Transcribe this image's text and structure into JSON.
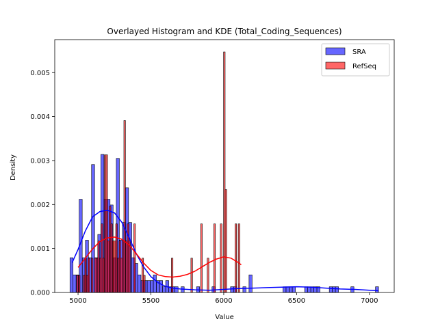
{
  "chart_data": {
    "type": "bar",
    "title": "Overlayed Histogram and KDE (Total_Coding_Sequences)",
    "xlabel": "Value",
    "ylabel": "Density",
    "xlim": [
      4840,
      7170
    ],
    "ylim": [
      0,
      0.00575
    ],
    "xticks": [
      5000,
      5500,
      6000,
      6500,
      7000
    ],
    "xtick_labels": [
      "5000",
      "5500",
      "6000",
      "6500",
      "7000"
    ],
    "yticks": [
      0,
      0.001,
      0.002,
      0.003,
      0.004,
      0.005
    ],
    "ytick_labels": [
      "0.000",
      "0.001",
      "0.002",
      "0.003",
      "0.004",
      "0.005"
    ],
    "legend_position": "top-right",
    "series": [
      {
        "name": "SRA",
        "color": "#0000ff",
        "bin_width": 21.2,
        "bins": [
          {
            "x": 4955,
            "y": 0.00079
          },
          {
            "x": 4976,
            "y": 0.0004
          },
          {
            "x": 4997,
            "y": 0.0004
          },
          {
            "x": 5018,
            "y": 0.00212
          },
          {
            "x": 5040,
            "y": 0.00079
          },
          {
            "x": 5061,
            "y": 0.00119
          },
          {
            "x": 5082,
            "y": 0.00079
          },
          {
            "x": 5103,
            "y": 0.00291
          },
          {
            "x": 5124,
            "y": 0.00079
          },
          {
            "x": 5146,
            "y": 0.00132
          },
          {
            "x": 5167,
            "y": 0.00314
          },
          {
            "x": 5188,
            "y": 0.00212
          },
          {
            "x": 5209,
            "y": 0.00212
          },
          {
            "x": 5230,
            "y": 0.00199
          },
          {
            "x": 5252,
            "y": 0.00079
          },
          {
            "x": 5273,
            "y": 0.00305
          },
          {
            "x": 5294,
            "y": 0.00119
          },
          {
            "x": 5315,
            "y": 0.00159
          },
          {
            "x": 5336,
            "y": 0.00238
          },
          {
            "x": 5358,
            "y": 0.00159
          },
          {
            "x": 5379,
            "y": 0.00079
          },
          {
            "x": 5400,
            "y": 0.00066
          },
          {
            "x": 5421,
            "y": 0.0004
          },
          {
            "x": 5442,
            "y": 0.00027
          },
          {
            "x": 5464,
            "y": 0.00027
          },
          {
            "x": 5485,
            "y": 0.00027
          },
          {
            "x": 5506,
            "y": 0.00027
          },
          {
            "x": 5527,
            "y": 0.0004
          },
          {
            "x": 5548,
            "y": 0.00027
          },
          {
            "x": 5570,
            "y": 0.00027
          },
          {
            "x": 5591,
            "y": 0.00013
          },
          {
            "x": 5612,
            "y": 0.00027
          },
          {
            "x": 5633,
            "y": 0.00013
          },
          {
            "x": 5654,
            "y": 0.00013
          },
          {
            "x": 5676,
            "y": 0.00013
          },
          {
            "x": 5718,
            "y": 0.00013
          },
          {
            "x": 5824,
            "y": 0.00013
          },
          {
            "x": 5930,
            "y": 0.00013
          },
          {
            "x": 6057,
            "y": 0.00013
          },
          {
            "x": 6078,
            "y": 0.00013
          },
          {
            "x": 6142,
            "y": 0.00013
          },
          {
            "x": 6184,
            "y": 0.0004
          },
          {
            "x": 6417,
            "y": 0.00013
          },
          {
            "x": 6438,
            "y": 0.00013
          },
          {
            "x": 6460,
            "y": 0.00013
          },
          {
            "x": 6481,
            "y": 0.00013
          },
          {
            "x": 6566,
            "y": 0.00013
          },
          {
            "x": 6587,
            "y": 0.00013
          },
          {
            "x": 6608,
            "y": 0.00013
          },
          {
            "x": 6629,
            "y": 0.00013
          },
          {
            "x": 6650,
            "y": 0.00013
          },
          {
            "x": 6735,
            "y": 0.00013
          },
          {
            "x": 6756,
            "y": 0.00013
          },
          {
            "x": 6777,
            "y": 0.00013
          },
          {
            "x": 6883,
            "y": 0.00013
          },
          {
            "x": 7052,
            "y": 0.00013
          }
        ],
        "kde": [
          [
            4960,
            0.00068
          ],
          [
            5000,
            0.00098
          ],
          [
            5050,
            0.0014
          ],
          [
            5100,
            0.00172
          ],
          [
            5150,
            0.00184
          ],
          [
            5200,
            0.00187
          ],
          [
            5250,
            0.00181
          ],
          [
            5300,
            0.0016
          ],
          [
            5350,
            0.00125
          ],
          [
            5400,
            0.00088
          ],
          [
            5450,
            0.00058
          ],
          [
            5500,
            0.00036
          ],
          [
            5550,
            0.00022
          ],
          [
            5600,
            0.00014
          ],
          [
            5650,
            0.0001
          ],
          [
            5700,
            8e-05
          ],
          [
            5800,
            6e-05
          ],
          [
            5900,
            5e-05
          ],
          [
            6000,
            7e-05
          ],
          [
            6100,
            9e-05
          ],
          [
            6200,
            0.0001
          ],
          [
            6300,
            0.00011
          ],
          [
            6400,
            0.00012
          ],
          [
            6500,
            0.00013
          ],
          [
            6600,
            0.00012
          ],
          [
            6700,
            0.0001
          ],
          [
            6800,
            8e-05
          ],
          [
            6900,
            7e-05
          ],
          [
            7000,
            5e-05
          ],
          [
            7060,
            4e-05
          ]
        ]
      },
      {
        "name": "RefSeq",
        "color": "#ff0000",
        "bin_width": 11.2,
        "bins": [
          {
            "x": 4996,
            "y": 0.00039
          },
          {
            "x": 5008,
            "y": 0.00039
          },
          {
            "x": 5041,
            "y": 0.00039
          },
          {
            "x": 5052,
            "y": 0.00078
          },
          {
            "x": 5063,
            "y": 0.00039
          },
          {
            "x": 5074,
            "y": 0.00078
          },
          {
            "x": 5097,
            "y": 0.00078
          },
          {
            "x": 5119,
            "y": 0.00078
          },
          {
            "x": 5130,
            "y": 0.00078
          },
          {
            "x": 5141,
            "y": 0.00117
          },
          {
            "x": 5153,
            "y": 0.00078
          },
          {
            "x": 5164,
            "y": 0.00156
          },
          {
            "x": 5175,
            "y": 0.00078
          },
          {
            "x": 5186,
            "y": 0.00313
          },
          {
            "x": 5197,
            "y": 0.00313
          },
          {
            "x": 5208,
            "y": 0.00117
          },
          {
            "x": 5220,
            "y": 0.00196
          },
          {
            "x": 5231,
            "y": 0.00156
          },
          {
            "x": 5242,
            "y": 0.00117
          },
          {
            "x": 5253,
            "y": 0.00117
          },
          {
            "x": 5264,
            "y": 0.00156
          },
          {
            "x": 5276,
            "y": 0.00078
          },
          {
            "x": 5287,
            "y": 0.00117
          },
          {
            "x": 5298,
            "y": 0.00078
          },
          {
            "x": 5309,
            "y": 0.00117
          },
          {
            "x": 5320,
            "y": 0.00391
          },
          {
            "x": 5332,
            "y": 0.00117
          },
          {
            "x": 5343,
            "y": 0.00156
          },
          {
            "x": 5354,
            "y": 0.00117
          },
          {
            "x": 5388,
            "y": 0.00156
          },
          {
            "x": 5444,
            "y": 0.00078
          },
          {
            "x": 5455,
            "y": 0.00039
          },
          {
            "x": 5646,
            "y": 0.00078
          },
          {
            "x": 5780,
            "y": 0.00078
          },
          {
            "x": 5847,
            "y": 0.00156
          },
          {
            "x": 5892,
            "y": 0.00078
          },
          {
            "x": 5937,
            "y": 0.00156
          },
          {
            "x": 5982,
            "y": 0.00156
          },
          {
            "x": 6004,
            "y": 0.00547
          },
          {
            "x": 6015,
            "y": 0.00234
          },
          {
            "x": 6083,
            "y": 0.00156
          },
          {
            "x": 6105,
            "y": 0.00156
          }
        ],
        "kde": [
          [
            5000,
            0.00057
          ],
          [
            5050,
            0.00078
          ],
          [
            5100,
            0.00099
          ],
          [
            5150,
            0.00116
          ],
          [
            5200,
            0.00124
          ],
          [
            5250,
            0.00126
          ],
          [
            5300,
            0.00121
          ],
          [
            5350,
            0.00108
          ],
          [
            5400,
            0.00088
          ],
          [
            5450,
            0.00067
          ],
          [
            5500,
            0.0005
          ],
          [
            5550,
            0.0004
          ],
          [
            5600,
            0.00036
          ],
          [
            5650,
            0.00035
          ],
          [
            5700,
            0.00037
          ],
          [
            5750,
            0.00041
          ],
          [
            5800,
            0.00048
          ],
          [
            5850,
            0.00058
          ],
          [
            5900,
            0.00068
          ],
          [
            5950,
            0.00076
          ],
          [
            6000,
            0.00081
          ],
          [
            6050,
            0.00078
          ],
          [
            6100,
            0.00068
          ],
          [
            6120,
            0.00063
          ]
        ]
      }
    ]
  }
}
